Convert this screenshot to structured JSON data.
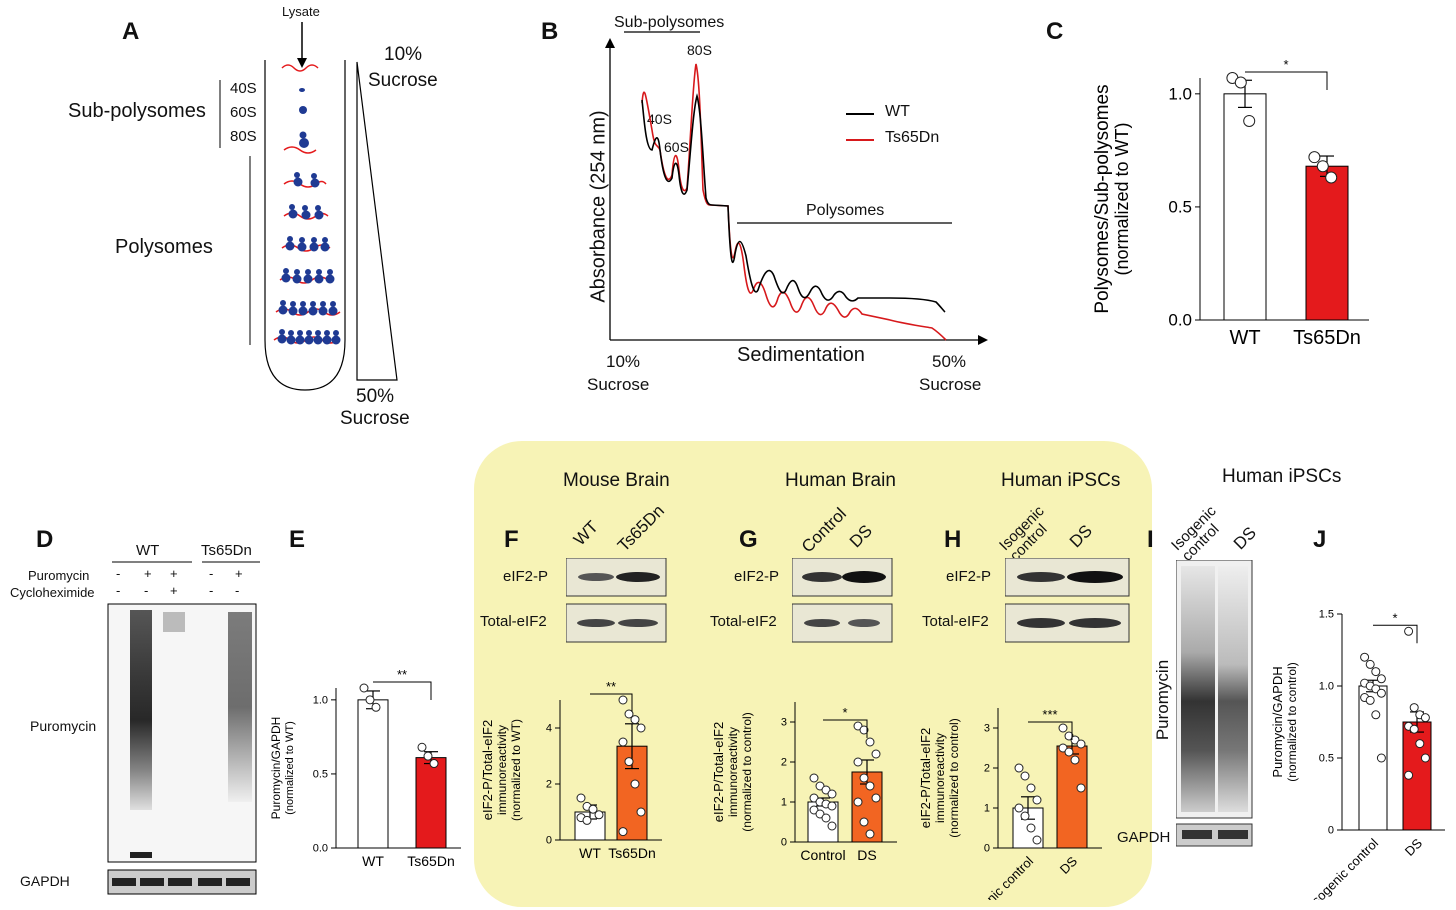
{
  "panels": {
    "A": {
      "letter": "A",
      "lysate": "Lysate",
      "top_percent": "10%",
      "top_sucrose": "Sucrose",
      "bottom_percent": "50%",
      "bottom_sucrose": "Sucrose",
      "sub_polysomes": "Sub-polysomes",
      "polysomes": "Polysomes",
      "subunits": [
        "40S",
        "60S",
        "80S"
      ]
    },
    "B": {
      "letter": "B",
      "bracket_label": "Sub-polysomes",
      "polysomes_label": "Polysomes",
      "ylabel": "Absorbance (254 nm)",
      "xlabel": "Sedimentation",
      "x_left_percent": "10%",
      "x_left_sucrose": "Sucrose",
      "x_right_percent": "50%",
      "x_right_sucrose": "Sucrose",
      "peak_40S": "40S",
      "peak_60S": "60S",
      "peak_80S": "80S",
      "legend": [
        "WT",
        "Ts65Dn"
      ],
      "colors": {
        "WT": "#000000",
        "Ts65Dn": "#d7191c"
      }
    },
    "C": {
      "letter": "C"
    },
    "D": {
      "letter": "D",
      "group_wt": "WT",
      "group_ts": "Ts65Dn",
      "row1": "Puromycin",
      "row2": "Cycloheximide",
      "row1_signs": [
        "-",
        "+",
        "+",
        "-",
        "+"
      ],
      "row2_signs": [
        "-",
        "-",
        "+",
        "-",
        "-"
      ],
      "blot_label": "Puromycin",
      "loading_label": "GAPDH"
    },
    "E": {
      "letter": "E"
    },
    "F": {
      "letter": "F",
      "title": "Mouse Brain",
      "lanes": [
        "WT",
        "Ts65Dn"
      ],
      "blot1": "eIF2-P",
      "blot2": "Total-eIF2"
    },
    "G": {
      "letter": "G",
      "title": "Human Brain",
      "lanes": [
        "Control",
        "DS"
      ],
      "blot1": "eIF2-P",
      "blot2": "Total-eIF2"
    },
    "H": {
      "letter": "H",
      "title": "Human iPSCs",
      "lanes": [
        "Isogenic control",
        "DS"
      ],
      "blot1": "eIF2-P",
      "blot2": "Total-eIF2"
    },
    "I": {
      "letter": "I",
      "title": "Human iPSCs",
      "lanes": [
        "Isogenic control",
        "DS"
      ],
      "blot_label": "Puromycin",
      "loading_label": "GAPDH"
    },
    "J": {
      "letter": "J"
    }
  },
  "chart_data": [
    {
      "id": "C",
      "type": "bar",
      "categories": [
        "WT",
        "Ts65Dn"
      ],
      "values": [
        1.0,
        0.68
      ],
      "errors": [
        0.06,
        0.045
      ],
      "points": [
        [
          1.07,
          1.05,
          0.88
        ],
        [
          0.72,
          0.68,
          0.63
        ]
      ],
      "ylabel": "Polysomes/Sub-polysomes",
      "ylabel2": "(normalized to WT)",
      "ylim": [
        0,
        1.0
      ],
      "yticks": [
        "0.0",
        "0.5",
        "1.0"
      ],
      "significance": "*",
      "colors": [
        "#ffffff",
        "#e41a1c"
      ]
    },
    {
      "id": "E",
      "type": "bar",
      "categories": [
        "WT",
        "Ts65Dn"
      ],
      "values": [
        1.0,
        0.61
      ],
      "errors": [
        0.06,
        0.04
      ],
      "points": [
        [
          1.08,
          1.0,
          0.95
        ],
        [
          0.68,
          0.62,
          0.57
        ]
      ],
      "ylabel": "Puromycin/GAPDH",
      "ylabel2": "(normalized to WT)",
      "ylim": [
        0,
        1.0
      ],
      "yticks": [
        "0.0",
        "0.5",
        "1.0"
      ],
      "significance": "**",
      "colors": [
        "#ffffff",
        "#e41a1c"
      ]
    },
    {
      "id": "F",
      "type": "bar",
      "categories": [
        "WT",
        "Ts65Dn"
      ],
      "values": [
        1.0,
        3.35
      ],
      "errors": [
        0.25,
        0.8
      ],
      "points": [
        [
          1.5,
          1.2,
          1.1,
          0.9,
          0.8,
          0.7
        ],
        [
          5.0,
          4.5,
          4.3,
          4.0,
          3.5,
          2.8,
          2.0,
          1.0,
          0.3
        ]
      ],
      "ylabel": "eIF2-P/Total-eIF2",
      "ylabel2": "immunoreactivity",
      "ylabel3": "(normalized to WT)",
      "ylim": [
        0,
        5
      ],
      "yticks": [
        "0",
        "2",
        "4"
      ],
      "significance": "**",
      "colors": [
        "#ffffff",
        "#f26522"
      ]
    },
    {
      "id": "G",
      "type": "bar",
      "categories": [
        "Control",
        "DS"
      ],
      "values": [
        1.0,
        1.75
      ],
      "errors": [
        0.1,
        0.3
      ],
      "points": [
        [
          1.6,
          1.4,
          1.3,
          1.2,
          1.1,
          1.0,
          0.95,
          0.9,
          0.8,
          0.7,
          0.6,
          0.4
        ],
        [
          2.9,
          2.8,
          2.5,
          2.2,
          2.0,
          1.6,
          1.4,
          1.1,
          1.0,
          0.5,
          0.2
        ]
      ],
      "ylabel": "eIF2-P/Total-eIF2",
      "ylabel2": "immunoreactivity",
      "ylabel3": "(normalized to control)",
      "ylim": [
        0,
        3.5
      ],
      "yticks": [
        "0",
        "1",
        "2",
        "3"
      ],
      "significance": "*",
      "colors": [
        "#ffffff",
        "#f26522"
      ]
    },
    {
      "id": "H",
      "type": "bar",
      "categories": [
        "Isogenic control",
        "DS"
      ],
      "values": [
        1.0,
        2.55
      ],
      "errors": [
        0.28,
        0.2
      ],
      "points": [
        [
          2.0,
          1.8,
          1.5,
          1.2,
          1.0,
          0.8,
          0.5,
          0.2
        ],
        [
          3.0,
          2.8,
          2.7,
          2.6,
          2.5,
          2.4,
          2.2,
          1.5
        ]
      ],
      "ylabel": "eIF2-P/Total-eIF2",
      "ylabel2": "immunoreactivity",
      "ylabel3": "(normalized to control)",
      "ylim": [
        0,
        3.5
      ],
      "yticks": [
        "0",
        "1",
        "2",
        "3"
      ],
      "significance": "***",
      "colors": [
        "#ffffff",
        "#f26522"
      ]
    },
    {
      "id": "J",
      "type": "bar",
      "categories": [
        "Isogenic control",
        "DS"
      ],
      "values": [
        1.0,
        0.75
      ],
      "errors": [
        0.04,
        0.07
      ],
      "points": [
        [
          1.2,
          1.15,
          1.1,
          1.05,
          1.02,
          1.0,
          0.98,
          0.95,
          0.92,
          0.9,
          0.8,
          0.5
        ],
        [
          1.38,
          0.85,
          0.8,
          0.78,
          0.72,
          0.7,
          0.6,
          0.5,
          0.38
        ]
      ],
      "ylabel": "Puromycin/GAPDH",
      "ylabel2": "(normalized to control)",
      "ylim": [
        0,
        1.5
      ],
      "yticks": [
        "0",
        "0.5",
        "1.0",
        "1.5"
      ],
      "significance": "*",
      "colors": [
        "#ffffff",
        "#e41a1c"
      ]
    }
  ]
}
